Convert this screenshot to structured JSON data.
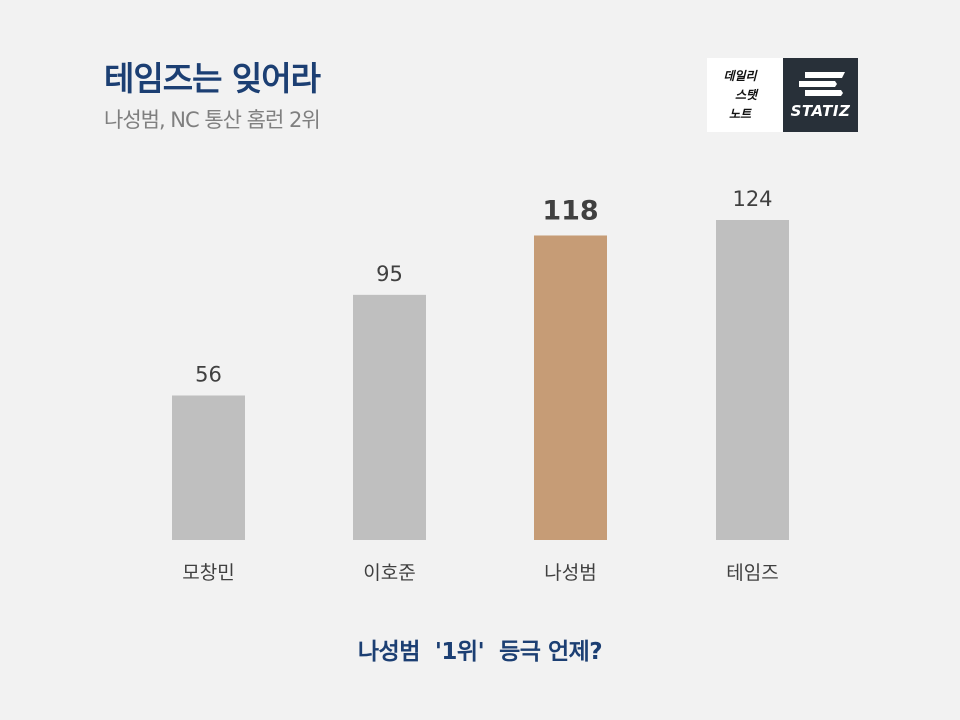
{
  "header": {
    "title": "테임즈는 잊어라",
    "subtitle": "나성범, NC 통산 홈런 2위"
  },
  "logo": {
    "left_lines": [
      "데일리",
      "스탯",
      "노트"
    ],
    "brand": "STATIZ",
    "brand_bg": "#283039"
  },
  "footer": {
    "text": "나성범  '1위'  등극 언제?"
  },
  "colors": {
    "bar_default": "#bfbfbf",
    "bar_highlight": "#c69c76",
    "title": "#1c3f73",
    "label": "#404040",
    "background": "#f2f2f2"
  },
  "chart_data": {
    "type": "bar",
    "categories": [
      "모창민",
      "이호준",
      "나성범",
      "테임즈"
    ],
    "values": [
      56,
      95,
      118,
      124
    ],
    "highlight_index": 2,
    "ylim": [
      0,
      124
    ],
    "grid": false
  }
}
